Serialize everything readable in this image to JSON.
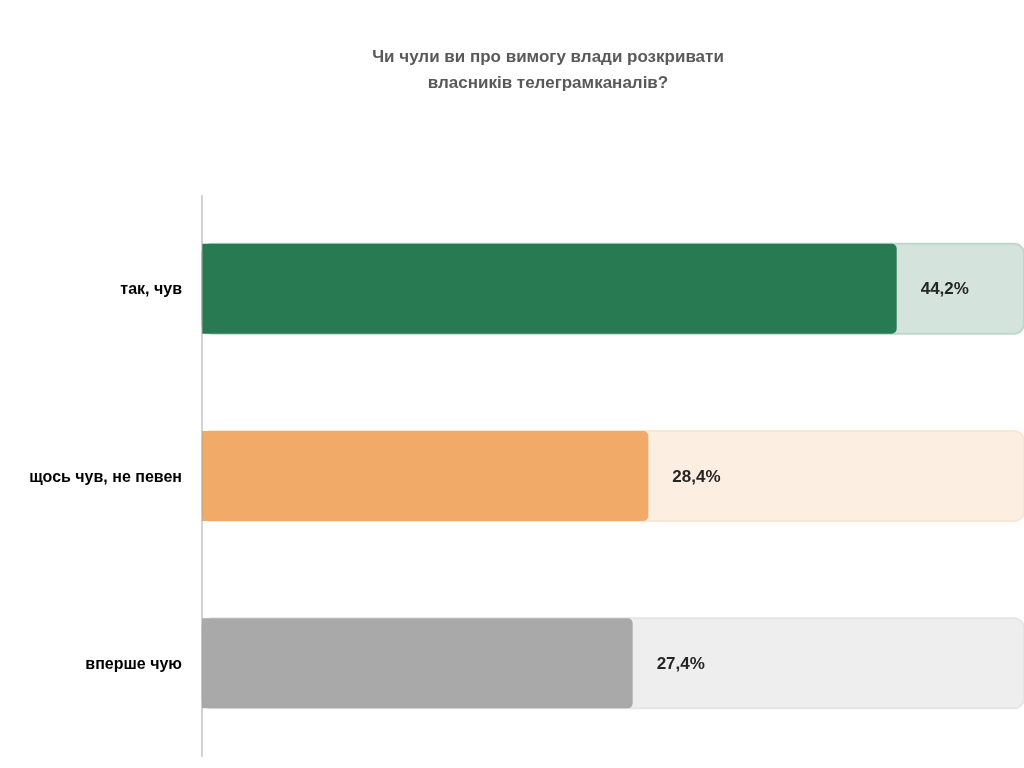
{
  "chart_data": {
    "type": "bar",
    "orientation": "horizontal",
    "title": "Чи чули ви про вимогу влади розкривати власників телеграмканалів?",
    "categories": [
      "так, чув",
      "щось чув, не певен",
      "вперше чую"
    ],
    "values": [
      44.2,
      28.4,
      27.4
    ],
    "colors": [
      "#277a52",
      "#f2aa68",
      "#a9a9a9"
    ],
    "value_labels": [
      "44,2%",
      "28,4%",
      "27,4%"
    ],
    "xlim": [
      0,
      52.3
    ],
    "tick_labels": "y"
  }
}
